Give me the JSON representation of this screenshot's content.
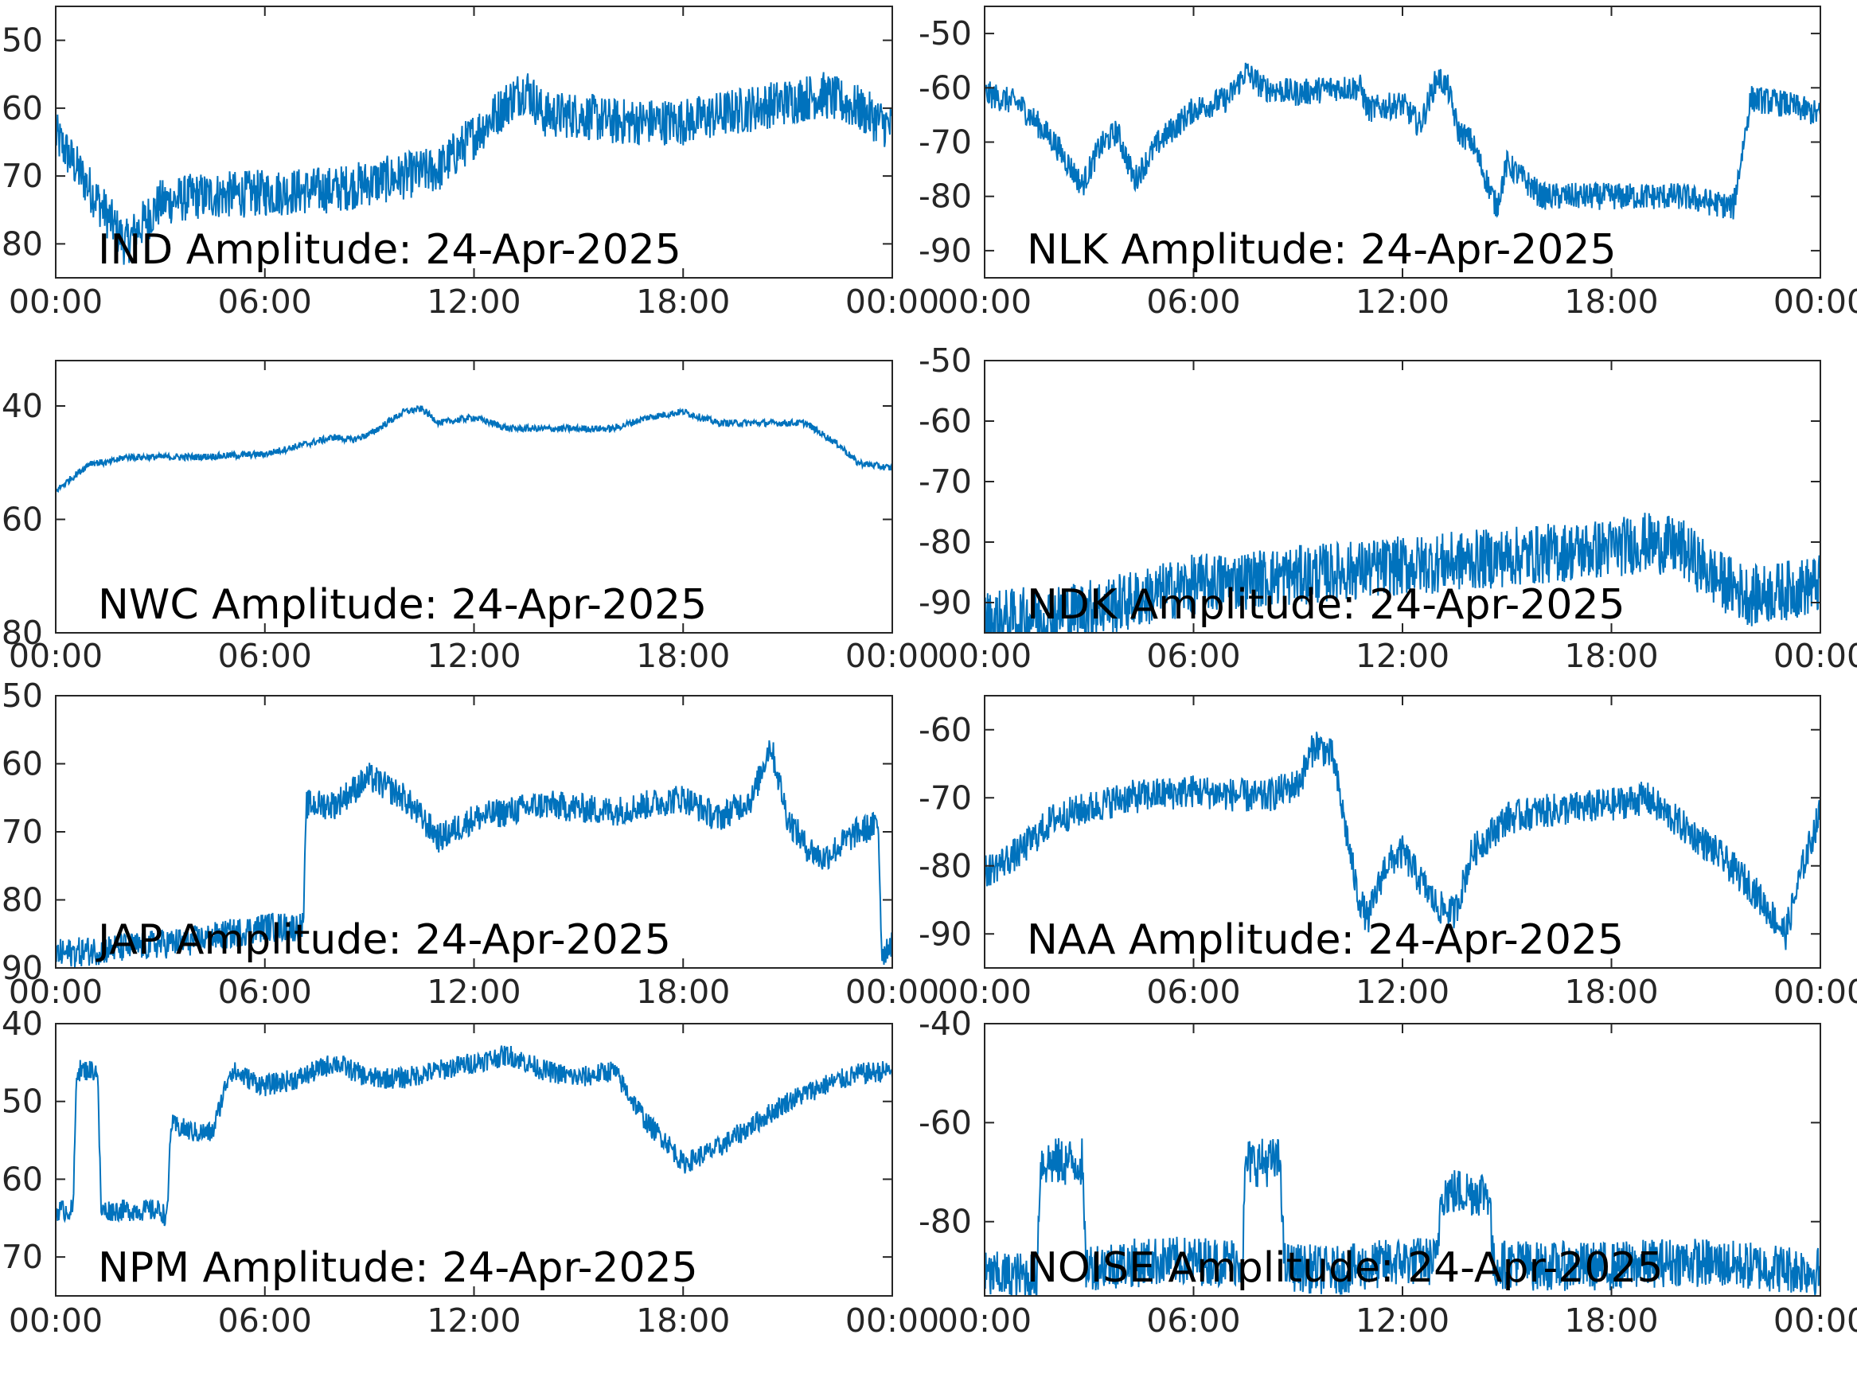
{
  "figure": {
    "background": "#ffffff",
    "line_color": "#0072bd"
  },
  "chart_data": [
    {
      "type": "line",
      "station": "IND",
      "title": "IND Amplitude: 24-Apr-2025",
      "xlabel": "",
      "ylabel": "",
      "xticks": [
        "00:00",
        "06:00",
        "12:00",
        "18:00",
        "00:00"
      ],
      "yticks": [
        "50",
        "60",
        "70",
        "80"
      ],
      "ylim": [
        -85,
        -45
      ],
      "y_reversed": false,
      "x": [
        0,
        1,
        1.5,
        2,
        3,
        4,
        6,
        8,
        10,
        11,
        12,
        13,
        13.5,
        14,
        15,
        16,
        18,
        20,
        22,
        23,
        24
      ],
      "y": [
        -64,
        -72,
        -76,
        -80,
        -74,
        -73,
        -72.5,
        -72,
        -70,
        -69,
        -64,
        -59,
        -57,
        -61,
        -61,
        -62,
        -62,
        -60,
        -58,
        -60,
        -63
      ],
      "noise": 3.5
    },
    {
      "type": "line",
      "station": "NLK",
      "title": "NLK Amplitude: 24-Apr-2025",
      "xlabel": "",
      "ylabel": "",
      "xticks": [
        "00:00",
        "06:00",
        "12:00",
        "18:00",
        "00:00"
      ],
      "yticks": [
        "-50",
        "-60",
        "-70",
        "-80",
        "-90"
      ],
      "ylim": [
        -95,
        -45
      ],
      "x": [
        0,
        1,
        2,
        2.8,
        3.3,
        3.8,
        4.3,
        5,
        6,
        7,
        7.5,
        8,
        9,
        10,
        10.8,
        11,
        12,
        12.5,
        13,
        13.3,
        13.6,
        14,
        14.7,
        15,
        16,
        18,
        20,
        21.5,
        22,
        23,
        24
      ],
      "y": [
        -61,
        -63,
        -70,
        -78,
        -71,
        -68,
        -77,
        -70,
        -64,
        -62,
        -57,
        -60,
        -61,
        -60,
        -60,
        -64,
        -63,
        -67,
        -58,
        -60,
        -68,
        -70,
        -82,
        -74,
        -80,
        -80,
        -80,
        -82,
        -62,
        -63,
        -65
      ],
      "noise": 2.5
    },
    {
      "type": "line",
      "station": "NWC",
      "title": "NWC Amplitude: 24-Apr-2025",
      "xlabel": "",
      "ylabel": "",
      "xticks": [
        "00:00",
        "06:00",
        "12:00",
        "18:00",
        "00:00"
      ],
      "yticks": [
        "40",
        "60",
        "80"
      ],
      "ylim": [
        -80,
        -32
      ],
      "y_reversed": false,
      "x": [
        0,
        1,
        1.5,
        2,
        4,
        6,
        7,
        8,
        8.5,
        9,
        10,
        10.5,
        11,
        12,
        13,
        14,
        15,
        16,
        17,
        18,
        19,
        20,
        21,
        21.5,
        22,
        22.5,
        23,
        24
      ],
      "y": [
        -55,
        -50,
        -50,
        -49,
        -49,
        -48.5,
        -47,
        -45.5,
        -46,
        -45,
        -41,
        -40.5,
        -43,
        -42,
        -44,
        -44,
        -44,
        -44,
        -42,
        -41,
        -43,
        -43,
        -43,
        -43,
        -45,
        -47,
        -50,
        -51
      ],
      "noise": 0.6
    },
    {
      "type": "line",
      "station": "NDK",
      "title": "NDK Amplitude: 24-Apr-2025",
      "xlabel": "",
      "ylabel": "",
      "xticks": [
        "00:00",
        "06:00",
        "12:00",
        "18:00",
        "00:00"
      ],
      "yticks": [
        "-50",
        "-60",
        "-70",
        "-80",
        "-90"
      ],
      "ylim": [
        -95,
        -50
      ],
      "x": [
        0,
        2,
        4,
        6,
        8,
        10,
        12,
        14,
        16,
        18,
        19,
        20,
        21,
        22,
        23,
        24
      ],
      "y": [
        -93,
        -92,
        -90,
        -87,
        -86,
        -85,
        -84,
        -83,
        -82,
        -81,
        -80,
        -81,
        -86,
        -89,
        -88,
        -87
      ],
      "noise": 5
    },
    {
      "type": "line",
      "station": "JAP",
      "title": "JAP Amplitude: 24-Apr-2025",
      "xlabel": "",
      "ylabel": "",
      "xticks": [
        "00:00",
        "06:00",
        "12:00",
        "18:00",
        "00:00"
      ],
      "yticks": [
        "50",
        "60",
        "70",
        "80",
        "90"
      ],
      "ylim": [
        -90,
        -50
      ],
      "y_reversed": false,
      "x": [
        0,
        2,
        4,
        6,
        7.1,
        7.2,
        8,
        9,
        10,
        11,
        12,
        14,
        16,
        18,
        19,
        20,
        20.5,
        21,
        21.5,
        22,
        23,
        23.6,
        23.7,
        24
      ],
      "y": [
        -88,
        -87,
        -86,
        -84,
        -84,
        -66,
        -66,
        -62,
        -65,
        -71,
        -68,
        -66,
        -67,
        -65,
        -68,
        -65,
        -57,
        -68,
        -72,
        -74,
        -70,
        -69,
        -88,
        -86
      ],
      "noise": 2.2
    },
    {
      "type": "line",
      "station": "NAA",
      "title": "NAA Amplitude: 24-Apr-2025",
      "xlabel": "",
      "ylabel": "",
      "xticks": [
        "00:00",
        "06:00",
        "12:00",
        "18:00",
        "00:00"
      ],
      "yticks": [
        "-60",
        "-70",
        "-80",
        "-90"
      ],
      "ylim": [
        -95,
        -55
      ],
      "x": [
        0,
        1,
        2,
        4,
        6,
        8,
        9,
        9.5,
        10,
        10.7,
        11,
        11.5,
        12,
        13,
        13.5,
        14,
        15,
        16,
        18,
        19,
        20,
        21,
        22,
        23,
        23.5,
        24
      ],
      "y": [
        -81,
        -78,
        -73,
        -70,
        -69,
        -70,
        -68,
        -62,
        -64,
        -84,
        -88,
        -80,
        -78,
        -86,
        -87,
        -78,
        -73,
        -72,
        -71,
        -70,
        -74,
        -78,
        -83,
        -90,
        -80,
        -72
      ],
      "noise": 2.5
    },
    {
      "type": "line",
      "station": "NPM",
      "title": "NPM Amplitude: 24-Apr-2025",
      "xlabel": "",
      "ylabel": "",
      "xticks": [
        "00:00",
        "06:00",
        "12:00",
        "18:00",
        "00:00"
      ],
      "yticks": [
        "40",
        "50",
        "60",
        "70"
      ],
      "ylim": [
        -75,
        -40
      ],
      "y_reversed": false,
      "x": [
        0,
        0.5,
        0.6,
        1.2,
        1.3,
        2,
        3,
        3.2,
        3.3,
        4,
        4.5,
        5,
        6,
        7,
        8,
        9,
        10,
        12,
        13,
        14,
        15,
        16,
        17,
        17.5,
        18,
        19,
        20,
        21,
        22,
        23,
        24
      ],
      "y": [
        -64,
        -64,
        -46,
        -46,
        -64,
        -64,
        -64,
        -65,
        -53,
        -54,
        -54,
        -46,
        -48,
        -47,
        -45,
        -47,
        -47,
        -45,
        -44,
        -46,
        -47,
        -46,
        -53,
        -55,
        -58,
        -56,
        -53,
        -50,
        -48,
        -46.5,
        -46
      ],
      "noise": 1.4
    },
    {
      "type": "line",
      "station": "NOISE",
      "title": "NOISE Amplitude: 24-Apr-2025",
      "xlabel": "",
      "ylabel": "",
      "xticks": [
        "00:00",
        "06:00",
        "12:00",
        "18:00",
        "00:00"
      ],
      "yticks": [
        "-40",
        "-60",
        "-80"
      ],
      "ylim": [
        -95,
        -40
      ],
      "x": [
        0,
        1.5,
        1.6,
        2.8,
        2.9,
        5,
        7,
        7.4,
        7.5,
        8.5,
        8.6,
        10,
        12,
        13,
        13.1,
        14.5,
        14.6,
        15.5,
        15.6,
        18,
        20,
        22,
        24
      ],
      "y": [
        -91,
        -91,
        -68,
        -68,
        -89,
        -88,
        -88,
        -88,
        -68,
        -68,
        -89,
        -90,
        -88,
        -88,
        -74,
        -74,
        -89,
        -88,
        -89,
        -89,
        -88,
        -89,
        -90
      ],
      "noise": 5
    }
  ]
}
